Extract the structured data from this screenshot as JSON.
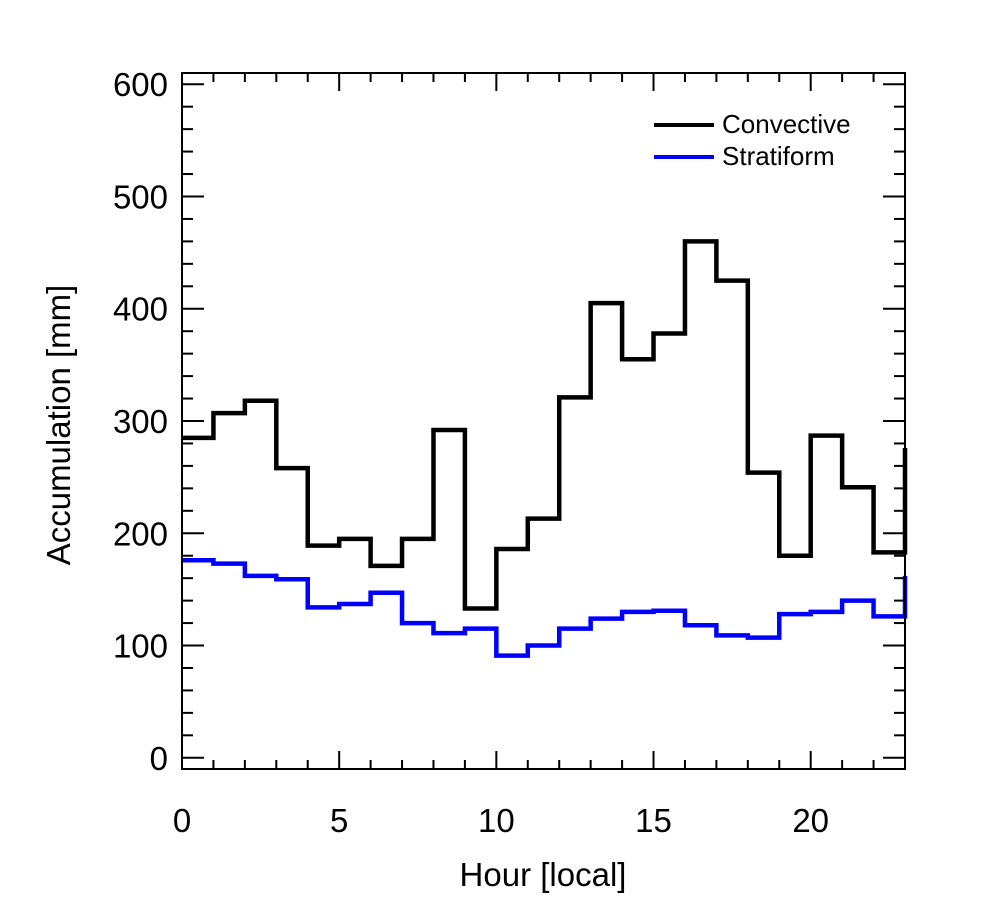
{
  "chart_data": {
    "type": "line",
    "step": true,
    "xlabel": "Hour [local]",
    "ylabel": "Accumulation [mm]",
    "xlim": [
      0,
      23
    ],
    "ylim": [
      -10,
      610
    ],
    "x_ticks": [
      0,
      5,
      10,
      15,
      20
    ],
    "x_tick_labels": [
      "0",
      "5",
      "10",
      "15",
      "20"
    ],
    "y_ticks": [
      0,
      100,
      200,
      300,
      400,
      500,
      600
    ],
    "y_tick_labels": [
      "0",
      "100",
      "200",
      "300",
      "400",
      "500",
      "600"
    ],
    "x": [
      0,
      1,
      2,
      3,
      4,
      5,
      6,
      7,
      8,
      9,
      10,
      11,
      12,
      13,
      14,
      15,
      16,
      17,
      18,
      19,
      20,
      21,
      22,
      23
    ],
    "series": [
      {
        "name": "Convective",
        "color": "#000000",
        "values": [
          285,
          307,
          318,
          258,
          189,
          195,
          171,
          195,
          292,
          133,
          186,
          213,
          321,
          405,
          355,
          378,
          460,
          425,
          254,
          180,
          287,
          241,
          183,
          276
        ]
      },
      {
        "name": "Stratiform",
        "color": "#0000ff",
        "values": [
          176,
          173,
          162,
          159,
          134,
          137,
          147,
          120,
          111,
          115,
          91,
          100,
          115,
          124,
          130,
          131,
          118,
          109,
          107,
          128,
          130,
          140,
          126,
          162
        ]
      }
    ],
    "legend_position": "top-right",
    "grid": false
  }
}
